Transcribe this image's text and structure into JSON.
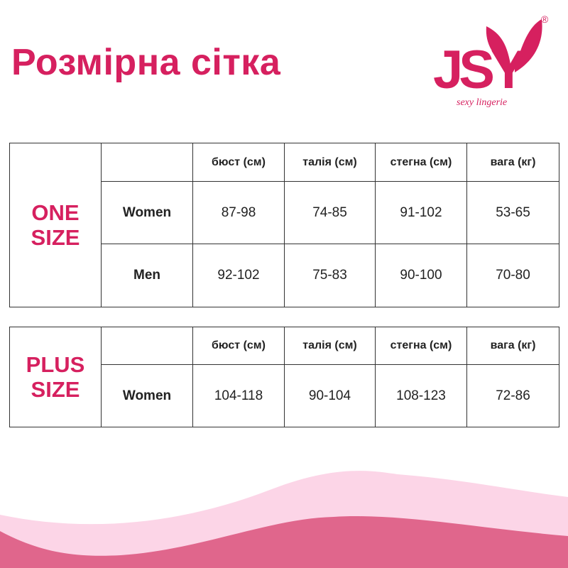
{
  "title": "Розмірна сітка",
  "logo": {
    "letters": "JSY",
    "tagline": "sexy lingerie",
    "registered": "®"
  },
  "colors": {
    "accent": "#d6205f",
    "wave_light": "#fcd5e7",
    "wave_dark": "#e0668c"
  },
  "columns": [
    "бюст (см)",
    "талія (см)",
    "стегна (см)",
    "вага (кг)"
  ],
  "tables": [
    {
      "group_line1": "ONE",
      "group_line2": "SIZE",
      "rows": [
        {
          "label": "Women",
          "values": [
            "87-98",
            "74-85",
            "91-102",
            "53-65"
          ]
        },
        {
          "label": "Men",
          "values": [
            "92-102",
            "75-83",
            "90-100",
            "70-80"
          ]
        }
      ]
    },
    {
      "group_line1": "PLUS",
      "group_line2": "SIZE",
      "rows": [
        {
          "label": "Women",
          "values": [
            "104-118",
            "90-104",
            "108-123",
            "72-86"
          ]
        }
      ]
    }
  ]
}
